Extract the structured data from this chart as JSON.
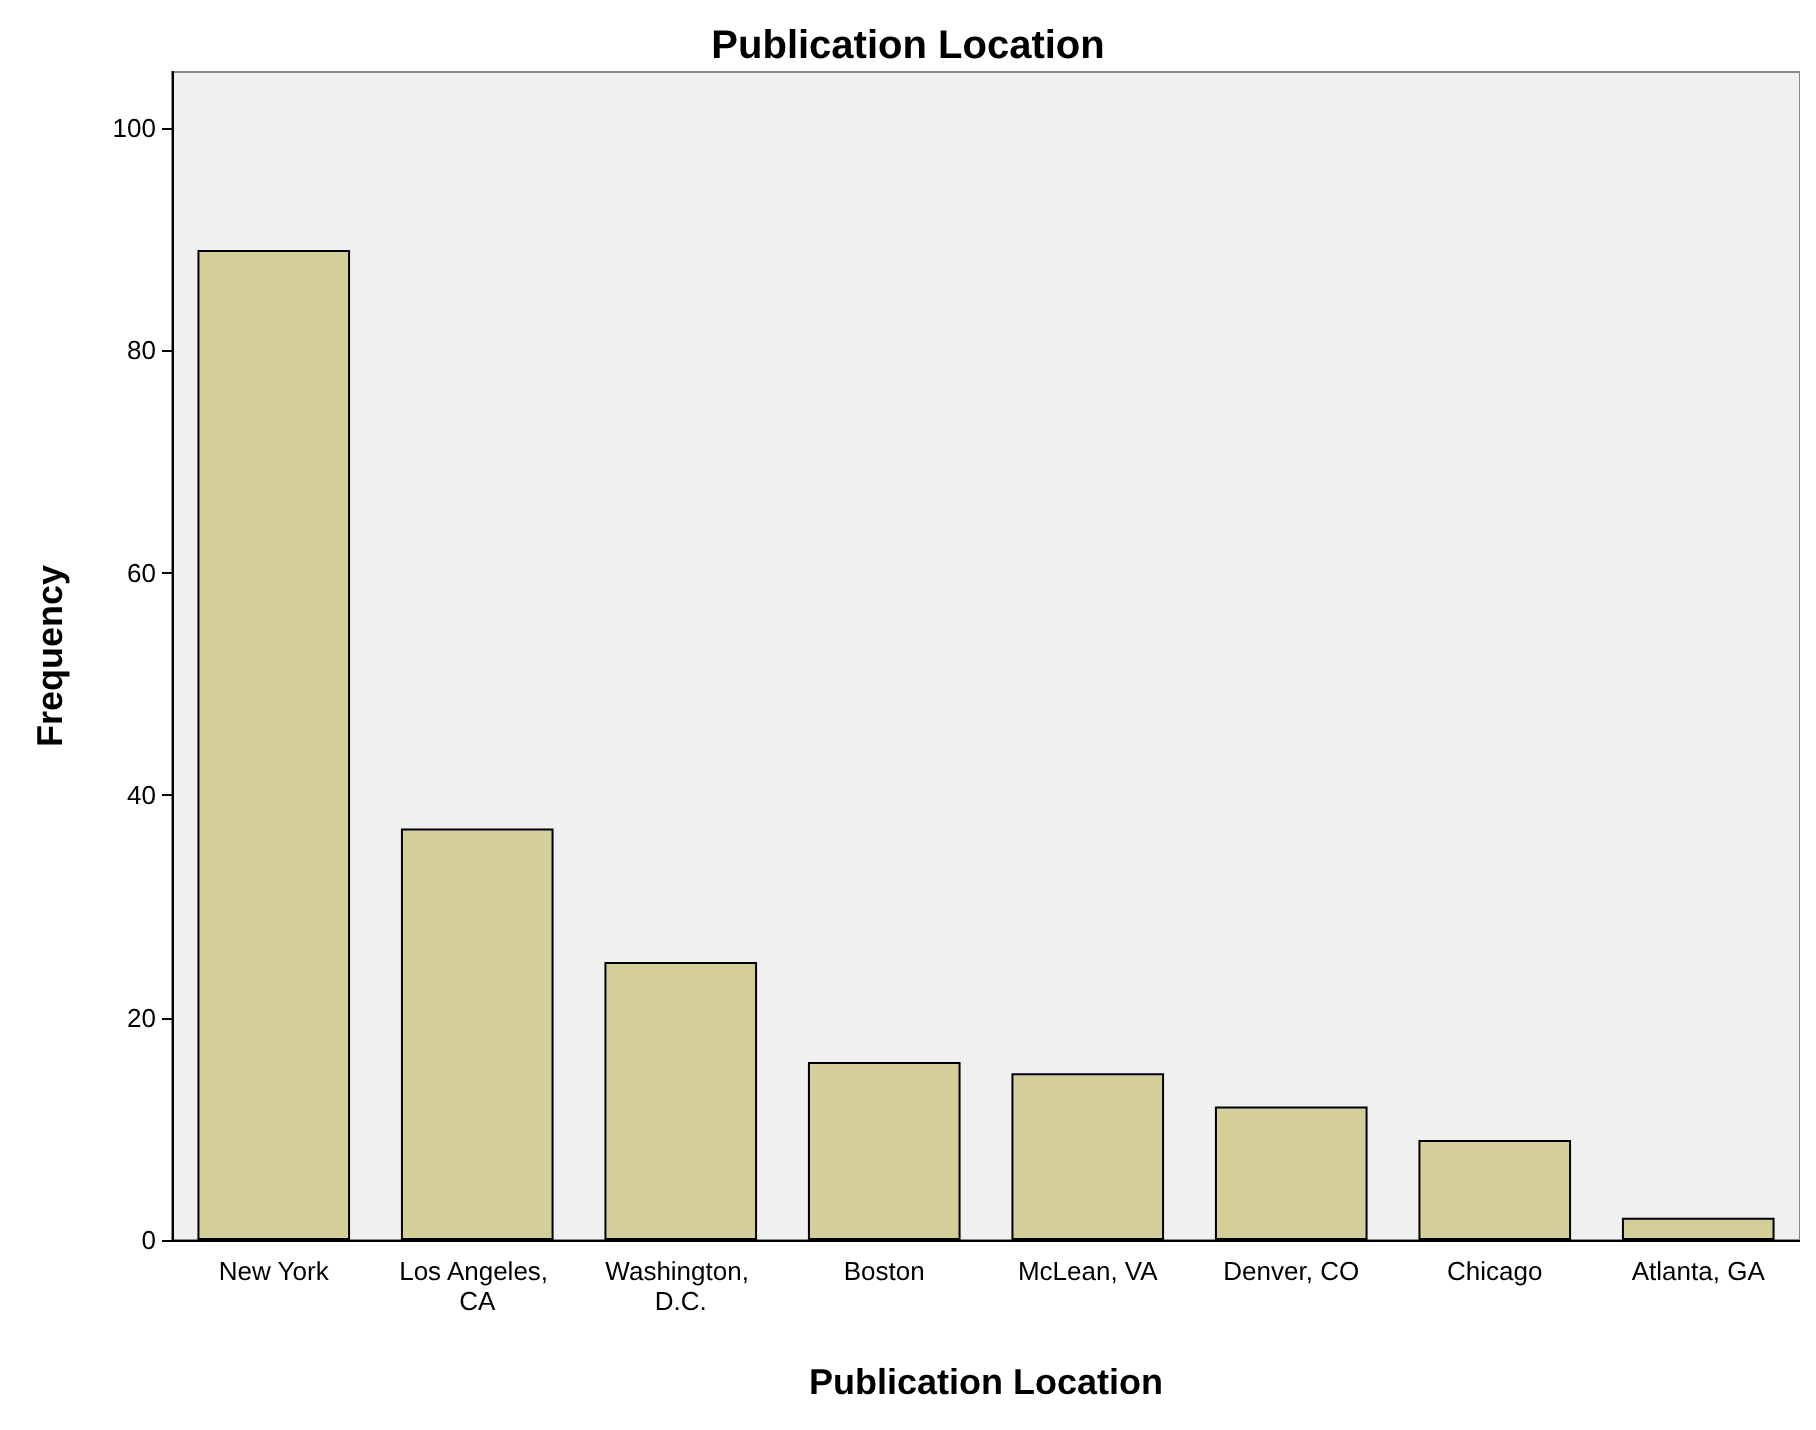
{
  "chart_data": {
    "type": "bar",
    "title": "Publication Location",
    "xlabel": "Publication Location",
    "ylabel": "Frequency",
    "categories": [
      "New York",
      "Los Angeles, CA",
      "Washington, D.C.",
      "Boston",
      "McLean, VA",
      "Denver, CO",
      "Chicago",
      "Atlanta, GA"
    ],
    "values": [
      89,
      37,
      25,
      16,
      15,
      12,
      9,
      2
    ],
    "color": "#d4cf98",
    "ylim": [
      0,
      105
    ],
    "yticks": [
      0,
      20,
      40,
      60,
      80,
      100
    ],
    "grid": false
  }
}
